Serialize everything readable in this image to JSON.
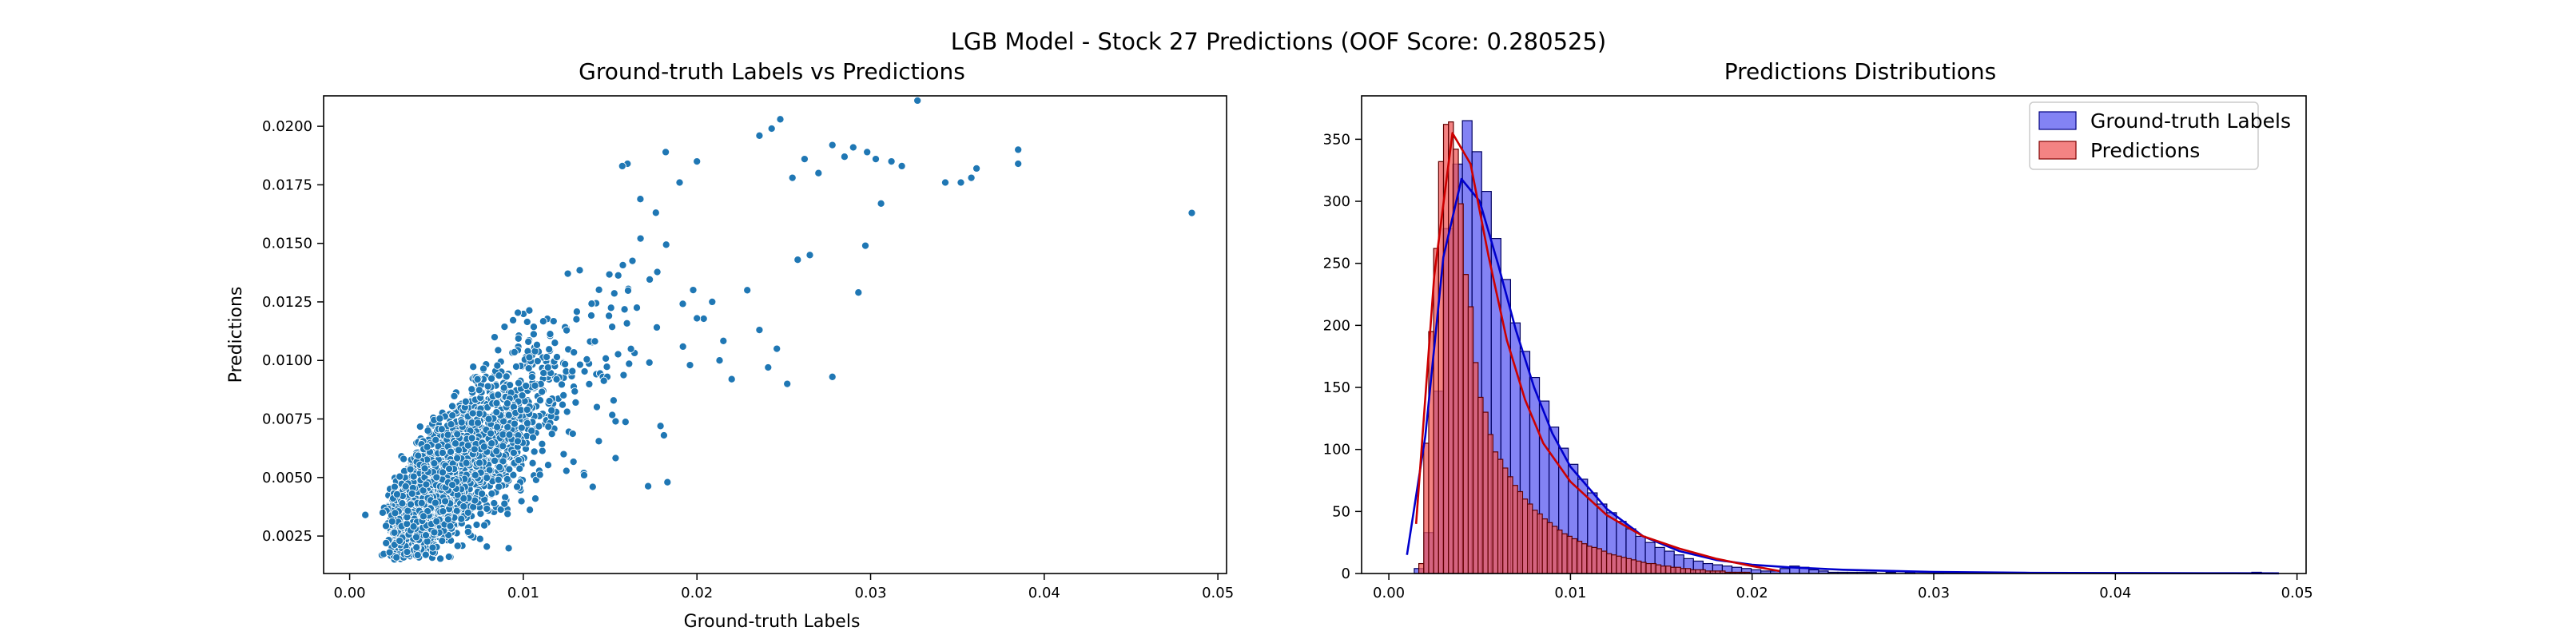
{
  "figure": {
    "suptitle": "LGB Model - Stock 27 Predictions (OOF Score: 0.280525)"
  },
  "colors": {
    "scatter": "#1f77b4",
    "truth_fill": "#5a5af0",
    "pred_fill": "#f05a5a",
    "truth_kde": "#0000cc",
    "pred_kde": "#cc0000"
  },
  "chart_data": [
    {
      "type": "scatter",
      "title": "Ground-truth Labels vs Predictions",
      "xlabel": "Ground-truth Labels",
      "ylabel": "Predictions",
      "xlim": [
        -0.0015,
        0.0505
      ],
      "ylim": [
        0.0009,
        0.0213
      ],
      "xticks": [
        "0.00",
        "0.01",
        "0.02",
        "0.03",
        "0.04",
        "0.05"
      ],
      "yticks": [
        "0.0025",
        "0.0050",
        "0.0075",
        "0.0100",
        "0.0125",
        "0.0150",
        "0.0175",
        "0.0200"
      ],
      "grid": false,
      "approx_point_count": 3800,
      "points_sample": [
        [
          0.0485,
          0.0163
        ],
        [
          0.0385,
          0.019
        ],
        [
          0.0385,
          0.0184
        ],
        [
          0.0361,
          0.0182
        ],
        [
          0.0358,
          0.0178
        ],
        [
          0.0352,
          0.0176
        ],
        [
          0.0343,
          0.0176
        ],
        [
          0.0327,
          0.0211
        ],
        [
          0.0318,
          0.0183
        ],
        [
          0.0312,
          0.0185
        ],
        [
          0.0303,
          0.0186
        ],
        [
          0.0298,
          0.0189
        ],
        [
          0.029,
          0.0191
        ],
        [
          0.0285,
          0.0187
        ],
        [
          0.0278,
          0.0192
        ],
        [
          0.027,
          0.018
        ],
        [
          0.0262,
          0.0186
        ],
        [
          0.0255,
          0.0178
        ],
        [
          0.0248,
          0.0203
        ],
        [
          0.0243,
          0.0199
        ],
        [
          0.0236,
          0.0196
        ],
        [
          0.0306,
          0.0167
        ],
        [
          0.0297,
          0.0149
        ],
        [
          0.0293,
          0.0129
        ],
        [
          0.0278,
          0.0093
        ],
        [
          0.0265,
          0.0145
        ],
        [
          0.0258,
          0.0143
        ],
        [
          0.0252,
          0.009
        ],
        [
          0.0246,
          0.0105
        ],
        [
          0.0241,
          0.0097
        ],
        [
          0.0236,
          0.0113
        ],
        [
          0.0229,
          0.013
        ],
        [
          0.022,
          0.0092
        ],
        [
          0.0213,
          0.01
        ],
        [
          0.0183,
          0.0048
        ],
        [
          0.0181,
          0.0068
        ],
        [
          0.0179,
          0.0072
        ],
        [
          0.0196,
          0.0098
        ],
        [
          0.02,
          0.0118
        ],
        [
          0.0019,
          0.0035
        ],
        [
          0.0009,
          0.0034
        ],
        [
          0.0021,
          0.0022
        ],
        [
          0.0023,
          0.0018
        ],
        [
          0.014,
          0.0046
        ],
        [
          0.0135,
          0.0051
        ],
        [
          0.016,
          0.0184
        ],
        [
          0.0157,
          0.0183
        ],
        [
          0.0182,
          0.0189
        ],
        [
          0.019,
          0.0176
        ],
        [
          0.02,
          0.0185
        ]
      ]
    },
    {
      "type": "histogram",
      "title": "Predictions Distributions",
      "xlabel": "",
      "ylabel": "",
      "xlim": [
        -0.0015,
        0.0505
      ],
      "ylim": [
        0,
        385
      ],
      "xticks": [
        "0.00",
        "0.01",
        "0.02",
        "0.03",
        "0.04",
        "0.05"
      ],
      "yticks": [
        "0",
        "50",
        "100",
        "150",
        "200",
        "250",
        "300",
        "350"
      ],
      "grid": false,
      "legend_position": "top-right",
      "series": [
        {
          "name": "Ground-truth Labels",
          "bin_start": 0.0014,
          "bin_width": 0.00053,
          "counts": [
            4,
            33,
            147,
            278,
            330,
            365,
            340,
            308,
            270,
            237,
            202,
            179,
            158,
            139,
            118,
            101,
            88,
            76,
            65,
            56,
            49,
            42,
            36,
            30,
            25,
            21,
            18,
            15,
            12,
            10,
            8,
            7,
            6,
            5,
            4,
            3,
            2,
            2,
            4,
            6,
            5,
            3,
            2,
            1,
            1,
            1,
            1,
            1,
            0,
            1,
            0,
            1,
            0,
            0,
            1,
            0,
            0,
            0,
            0,
            0,
            0,
            0,
            0,
            0,
            0,
            0,
            0,
            0,
            0,
            0,
            0,
            0,
            0,
            0,
            0,
            0,
            0,
            0,
            0,
            0,
            0,
            0,
            0,
            0,
            0,
            0,
            0,
            1
          ],
          "kde": [
            [
              0.001,
              15
            ],
            [
              0.002,
              110
            ],
            [
              0.003,
              255
            ],
            [
              0.004,
              318
            ],
            [
              0.005,
              300
            ],
            [
              0.006,
              250
            ],
            [
              0.007,
              196
            ],
            [
              0.008,
              150
            ],
            [
              0.009,
              113
            ],
            [
              0.01,
              86
            ],
            [
              0.012,
              52
            ],
            [
              0.014,
              30
            ],
            [
              0.016,
              18
            ],
            [
              0.018,
              11
            ],
            [
              0.02,
              7
            ],
            [
              0.022,
              5
            ],
            [
              0.025,
              3
            ],
            [
              0.03,
              1.2
            ],
            [
              0.035,
              0.6
            ],
            [
              0.04,
              0.4
            ],
            [
              0.045,
              0.2
            ],
            [
              0.049,
              0.1
            ]
          ]
        },
        {
          "name": "Predictions",
          "bin_start": 0.00165,
          "bin_width": 0.000272,
          "counts": [
            8,
            105,
            195,
            262,
            332,
            362,
            364,
            342,
            298,
            241,
            215,
            170,
            142,
            130,
            112,
            98,
            92,
            85,
            78,
            71,
            66,
            60,
            56,
            51,
            48,
            44,
            41,
            38,
            35,
            32,
            30,
            28,
            26,
            24,
            22,
            21,
            20,
            18,
            16,
            15,
            14,
            13,
            12,
            11,
            10,
            9,
            8,
            8,
            7,
            6,
            6,
            5,
            5,
            4,
            4,
            3,
            3,
            3,
            2,
            2,
            2,
            2,
            1,
            1,
            1,
            1,
            1
          ],
          "kde": [
            [
              0.0015,
              40
            ],
            [
              0.0025,
              240
            ],
            [
              0.0035,
              355
            ],
            [
              0.0045,
              330
            ],
            [
              0.0055,
              255
            ],
            [
              0.0065,
              188
            ],
            [
              0.0075,
              140
            ],
            [
              0.0085,
              105
            ],
            [
              0.01,
              74
            ],
            [
              0.012,
              47
            ],
            [
              0.014,
              30
            ],
            [
              0.016,
              20
            ],
            [
              0.018,
              12
            ],
            [
              0.02,
              6
            ],
            [
              0.0215,
              2
            ]
          ]
        }
      ]
    }
  ]
}
